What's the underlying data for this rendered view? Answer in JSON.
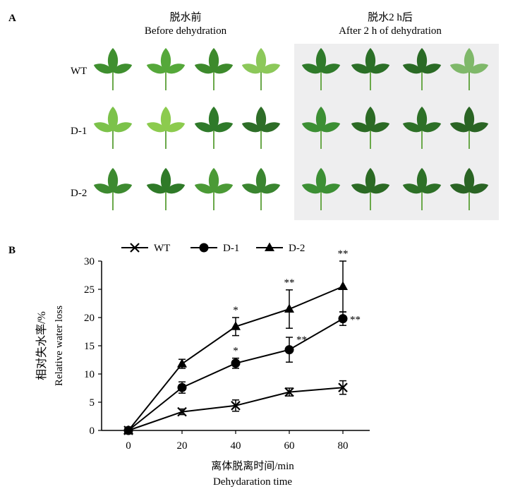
{
  "panel_a": {
    "label": "A",
    "before_cn": "脱水前",
    "before_en": "Before dehydration",
    "after_cn": "脱水2 h后",
    "after_en": "After 2 h of dehydration",
    "rows": [
      "WT",
      "D-1",
      "D-2"
    ]
  },
  "panel_b": {
    "label": "B"
  },
  "chart_data": {
    "type": "line",
    "x": [
      0,
      20,
      40,
      60,
      80
    ],
    "xlim": [
      -10,
      90
    ],
    "ylim": [
      0,
      30
    ],
    "xticks": [
      "0",
      "20",
      "40",
      "60",
      "80"
    ],
    "yticks": [
      "0",
      "5",
      "10",
      "15",
      "20",
      "25",
      "30"
    ],
    "ylabel_cn": "相对失水率/%",
    "ylabel_en": "Relative water loss",
    "xlabel_cn": "离体脱离时间/min",
    "xlabel_en": "Dehydaration time",
    "legend_position": "top",
    "series": [
      {
        "name": "WT",
        "marker": "x",
        "values": [
          0,
          3.3,
          4.4,
          6.8,
          7.6
        ],
        "errors": [
          0.2,
          0.5,
          1.0,
          0.7,
          1.2
        ],
        "stars": [
          "",
          "",
          "",
          "",
          ""
        ]
      },
      {
        "name": "D-1",
        "marker": "circle",
        "values": [
          0,
          7.6,
          11.9,
          14.3,
          19.8
        ],
        "errors": [
          0.3,
          1.0,
          0.9,
          2.2,
          1.2
        ],
        "stars": [
          "",
          "",
          "*",
          "**",
          "**"
        ]
      },
      {
        "name": "D-2",
        "marker": "triangle",
        "values": [
          0,
          11.8,
          18.4,
          21.5,
          25.5
        ],
        "errors": [
          0.3,
          0.8,
          1.6,
          3.4,
          4.5
        ],
        "stars": [
          "",
          "",
          "*",
          "**",
          "**"
        ]
      }
    ]
  }
}
